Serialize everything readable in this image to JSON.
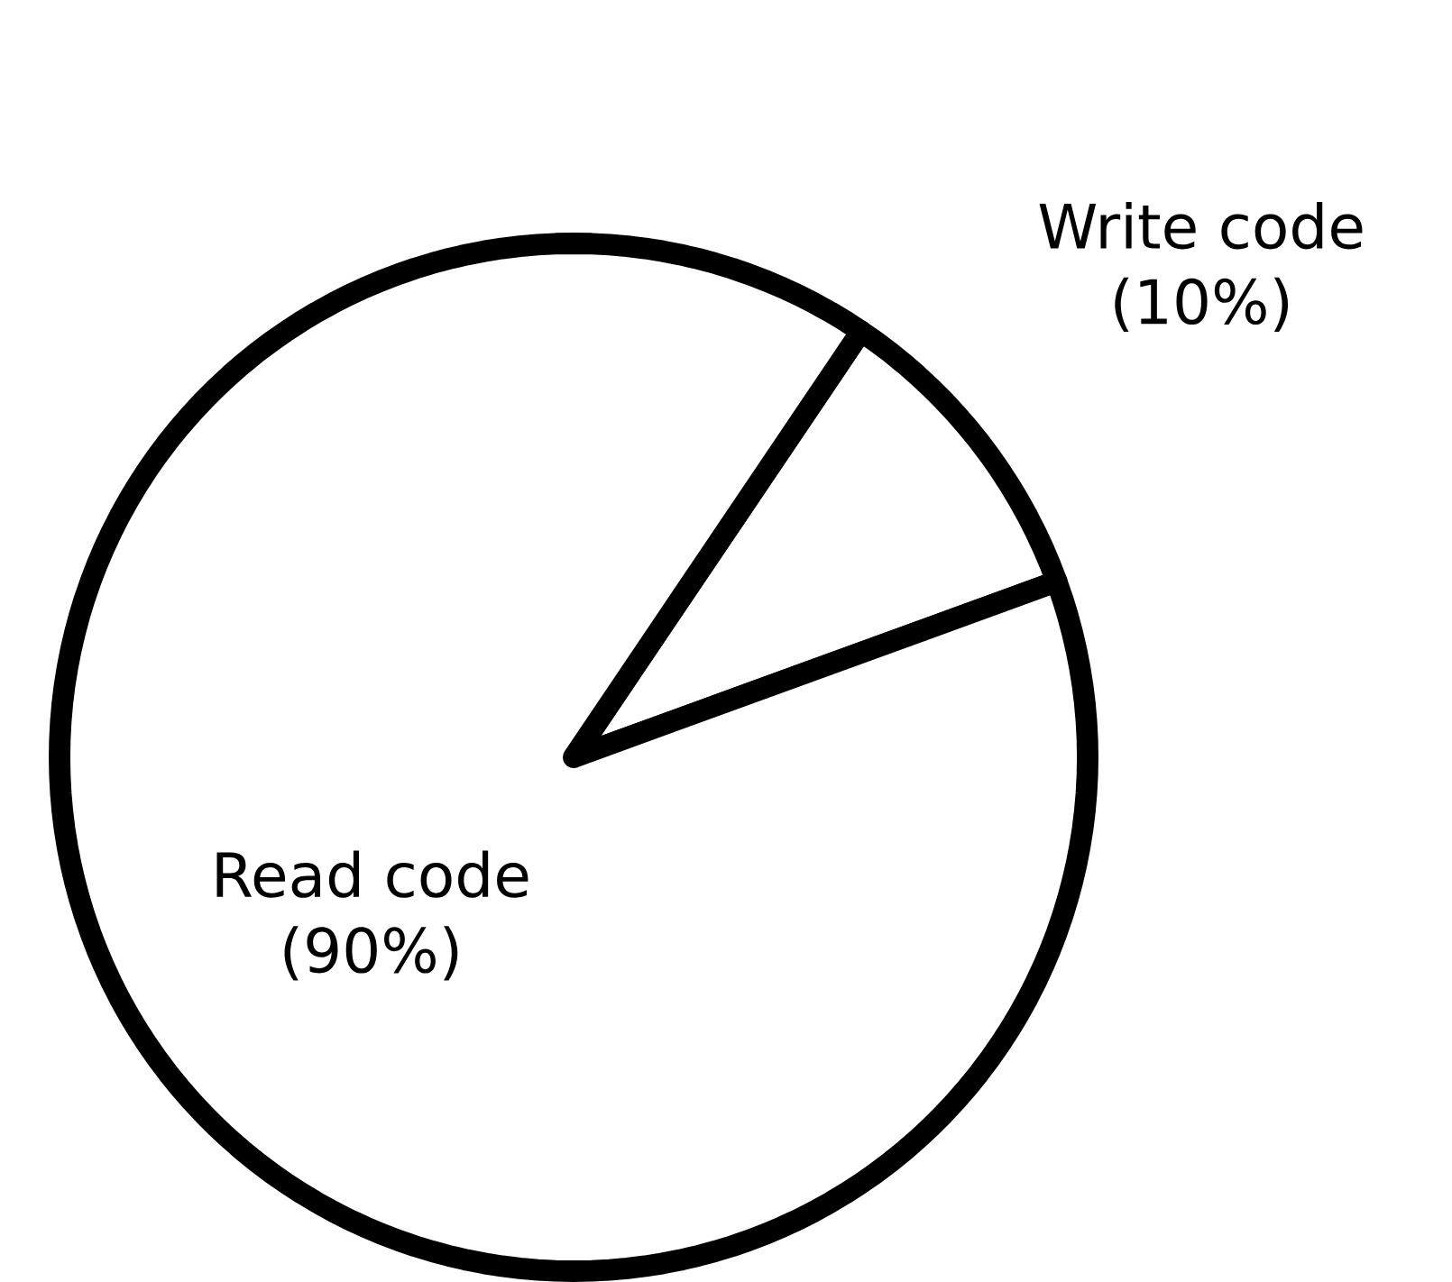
{
  "chart_data": {
    "type": "pie",
    "categories": [
      "Write code",
      "Read code"
    ],
    "values": [
      10,
      90
    ],
    "value_labels": [
      "(10%)",
      "(90%)"
    ],
    "colors": [
      "#ffffff",
      "#ffffff"
    ]
  }
}
